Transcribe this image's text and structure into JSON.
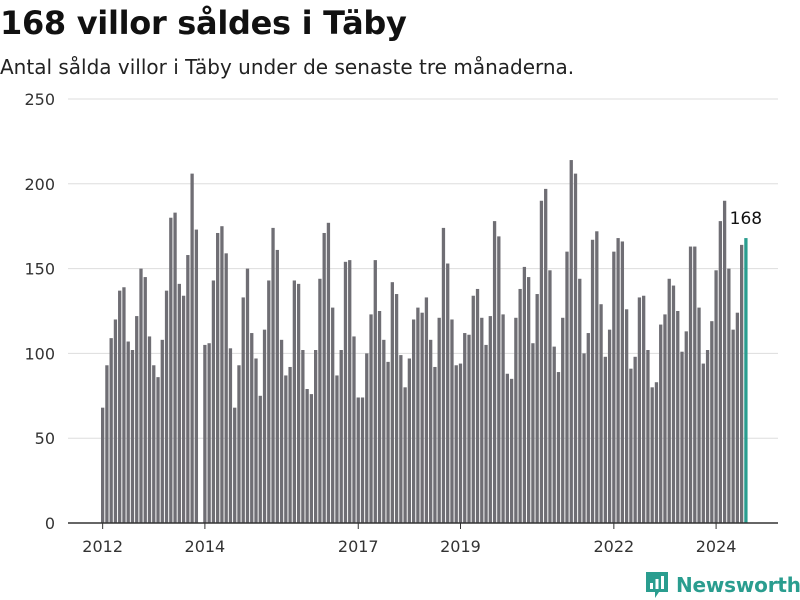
{
  "title": "168 villor såldes i Täby",
  "subtitle": "Antal sålda villor i Täby under de senaste tre månaderna.",
  "brand": "Newsworthy",
  "colors": {
    "bar": "#6f6e74",
    "highlight": "#2a9d8f",
    "grid": "#dddddd",
    "axis": "#333333"
  },
  "chart_data": {
    "type": "bar",
    "title": "168 villor såldes i Täby",
    "xlabel": "",
    "ylabel": "",
    "ylim": [
      0,
      250
    ],
    "yticks": [
      0,
      50,
      100,
      150,
      200,
      250
    ],
    "x_start": "2012-01",
    "xtick_labels": [
      {
        "label": "2012",
        "index": 0
      },
      {
        "label": "2014",
        "index": 24
      },
      {
        "label": "2017",
        "index": 60
      },
      {
        "label": "2019",
        "index": 84
      },
      {
        "label": "2022",
        "index": 120
      },
      {
        "label": "2024",
        "index": 144
      }
    ],
    "values": [
      68,
      93,
      109,
      120,
      137,
      139,
      107,
      102,
      122,
      150,
      145,
      110,
      93,
      86,
      108,
      137,
      180,
      183,
      141,
      134,
      158,
      206,
      173,
      0,
      105,
      106,
      143,
      171,
      175,
      159,
      103,
      68,
      93,
      133,
      150,
      112,
      97,
      75,
      114,
      143,
      174,
      161,
      108,
      87,
      92,
      143,
      141,
      102,
      79,
      76,
      102,
      144,
      171,
      177,
      127,
      87,
      102,
      154,
      155,
      110,
      74,
      74,
      100,
      123,
      155,
      125,
      108,
      95,
      142,
      135,
      99,
      80,
      97,
      120,
      127,
      124,
      133,
      108,
      92,
      121,
      174,
      153,
      120,
      93,
      94,
      112,
      111,
      134,
      138,
      121,
      105,
      122,
      178,
      169,
      123,
      88,
      85,
      121,
      138,
      151,
      145,
      106,
      135,
      190,
      197,
      149,
      104,
      89,
      121,
      160,
      214,
      206,
      144,
      100,
      112,
      167,
      172,
      129,
      98,
      114,
      160,
      168,
      166,
      126,
      91,
      98,
      133,
      134,
      102,
      80,
      83,
      117,
      123,
      144,
      140,
      125,
      101,
      113,
      163,
      163,
      127,
      94,
      102,
      119,
      149,
      178,
      190,
      150,
      114,
      124,
      164,
      168
    ],
    "highlight_index": 151,
    "highlight_label": "168"
  }
}
